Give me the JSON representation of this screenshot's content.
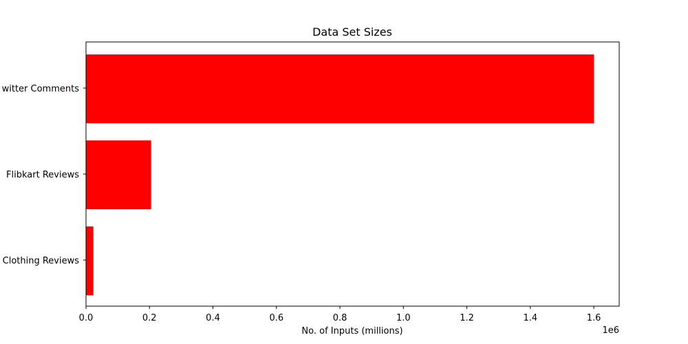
{
  "chart_data": {
    "type": "bar",
    "orientation": "horizontal",
    "title": "Data Set Sizes",
    "xlabel": "No. of Inputs (millions)",
    "ylabel": "",
    "x_offset_text": "1e6",
    "categories": [
      "Twitter Comments",
      "Flibkart Reviews",
      "Clothing Reviews"
    ],
    "visible_category_labels": [
      "witter Comments",
      "Flibkart Reviews",
      "Clothing Reviews"
    ],
    "values": [
      1600000,
      205000,
      23000
    ],
    "xlim": [
      0,
      1680000
    ],
    "xticks": [
      0,
      200000,
      400000,
      600000,
      800000,
      1000000,
      1200000,
      1400000,
      1600000
    ],
    "xtick_labels": [
      "0.0",
      "0.2",
      "0.4",
      "0.6",
      "0.8",
      "1.0",
      "1.2",
      "1.4",
      "1.6"
    ],
    "bar_color": "#ff0000",
    "grid": false,
    "legend": "none"
  }
}
